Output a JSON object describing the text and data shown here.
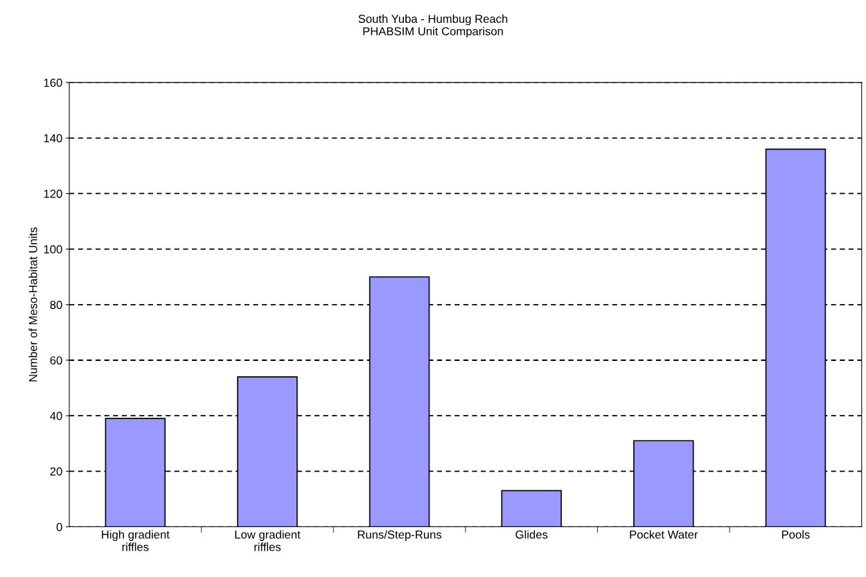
{
  "chart_data": {
    "type": "bar",
    "title": "South Yuba - Humbug Reach\nPHABSIM Unit Comparison",
    "ylabel": "Number of Meso-Habitat Units",
    "categories": [
      "High gradient\nriffles",
      "Low gradient\nriffles",
      "Runs/Step-Runs",
      "Glides",
      "Pocket Water",
      "Pools"
    ],
    "values": [
      39,
      54,
      90,
      13,
      31,
      136
    ],
    "color": "#9999ff",
    "ylim": [
      0,
      160
    ],
    "yticks": [
      0,
      20,
      40,
      60,
      80,
      100,
      120,
      140,
      160
    ],
    "grid": "y",
    "line_style": "dashed",
    "legend": false
  }
}
